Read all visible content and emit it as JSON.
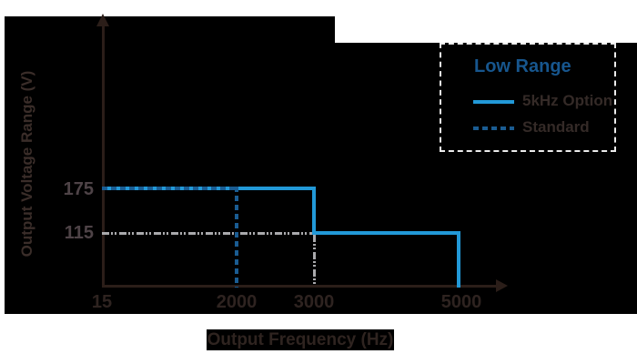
{
  "figure": {
    "y_axis_label": "Output Voltage Range (V)",
    "x_axis_label": "Output Frequency (Hz)",
    "y_ticks": [
      "175",
      "115"
    ],
    "x_ticks": [
      "15",
      "2000",
      "3000",
      "5000"
    ]
  },
  "legend": {
    "title": "Low Range",
    "items": [
      {
        "label": "5kHz Option",
        "style": "solid"
      },
      {
        "label": "Standard",
        "style": "dashed"
      }
    ]
  },
  "colors": {
    "accent_blue": "#2299d8",
    "dark_blue_dashed": "#1a5c92",
    "legend_title_blue": "#17568e",
    "reference_gray": "#a9a9ac",
    "axis_dark": "#2b1e19",
    "figure_background": "#000000",
    "page_background": "#ffffff"
  },
  "chart_data": {
    "type": "line",
    "title": "",
    "xlabel": "Output Frequency (Hz)",
    "ylabel": "Output Voltage Range (V)",
    "x_ticks": [
      15,
      2000,
      3000,
      5000
    ],
    "y_ticks": [
      115,
      175
    ],
    "x_axis_note": "non-linear category-like spacing as drawn",
    "grid": false,
    "legend_position": "top-right",
    "series": [
      {
        "name": "5kHz Option",
        "style": "solid",
        "color": "#2299d8",
        "points": [
          [
            15,
            175
          ],
          [
            3000,
            175
          ],
          [
            3000,
            115
          ],
          [
            5000,
            115
          ],
          [
            5000,
            0
          ]
        ]
      },
      {
        "name": "Standard",
        "style": "dashed",
        "color": "#1a5c92",
        "points": [
          [
            15,
            175
          ],
          [
            2000,
            175
          ],
          [
            2000,
            0
          ]
        ]
      }
    ],
    "reference_lines": [
      {
        "orientation": "horizontal",
        "y": 115,
        "from_x": 15,
        "to_x": 3000,
        "style": "dash-dot",
        "color": "#a9a9ac"
      },
      {
        "orientation": "vertical",
        "x": 3000,
        "from_y": 0,
        "to_y": 115,
        "style": "dash-dot",
        "color": "#a9a9ac"
      }
    ]
  }
}
